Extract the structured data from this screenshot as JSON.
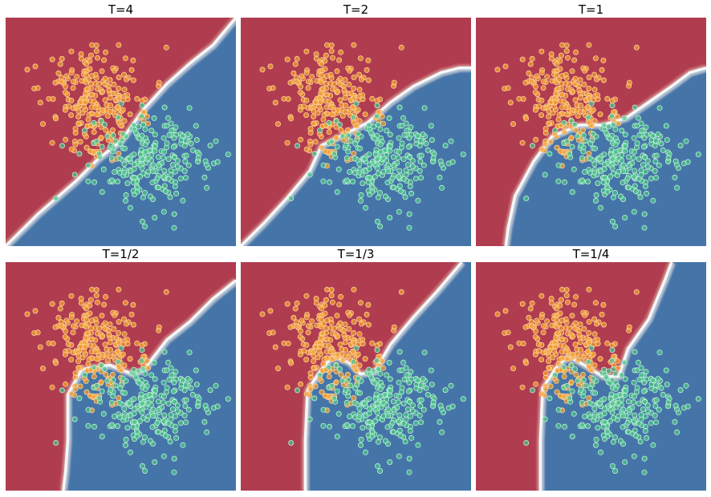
{
  "figure": {
    "colors": {
      "region_red": "#b03c50",
      "region_blue": "#4575a8",
      "boundary_white": "#f4f6f8",
      "point_orange": "#f5a030",
      "point_orange_edge": "#fbd29a",
      "point_green": "#4cc48a",
      "point_green_edge": "#bff0d6"
    }
  },
  "chart_data": [
    {
      "type": "scatter",
      "title": "T=4",
      "xlabel": "",
      "ylabel": "",
      "grid": false,
      "axes_visible": false,
      "decision_boundary": [
        [
          0.0,
          1.0
        ],
        [
          0.07,
          0.93
        ],
        [
          0.14,
          0.86
        ],
        [
          0.22,
          0.79
        ],
        [
          0.3,
          0.72
        ],
        [
          0.4,
          0.62
        ],
        [
          0.5,
          0.54
        ],
        [
          0.6,
          0.4
        ],
        [
          0.7,
          0.29
        ],
        [
          0.8,
          0.2
        ],
        [
          0.9,
          0.12
        ],
        [
          1.0,
          0.0
        ]
      ],
      "series": [
        {
          "class": "orange",
          "center": [
            0.38,
            0.36
          ],
          "spread": [
            0.11,
            0.12
          ],
          "count": 240
        },
        {
          "class": "green",
          "center": [
            0.62,
            0.62
          ],
          "spread": [
            0.13,
            0.1
          ],
          "count": 240
        }
      ]
    },
    {
      "type": "scatter",
      "title": "T=2",
      "xlabel": "",
      "ylabel": "",
      "grid": false,
      "axes_visible": false,
      "decision_boundary": [
        [
          0.0,
          1.0
        ],
        [
          0.1,
          0.9
        ],
        [
          0.2,
          0.79
        ],
        [
          0.3,
          0.67
        ],
        [
          0.35,
          0.56
        ],
        [
          0.45,
          0.51
        ],
        [
          0.55,
          0.46
        ],
        [
          0.65,
          0.37
        ],
        [
          0.75,
          0.3
        ],
        [
          0.87,
          0.24
        ],
        [
          0.95,
          0.22
        ],
        [
          1.0,
          0.22
        ]
      ],
      "series": [
        {
          "class": "orange",
          "center": [
            0.38,
            0.36
          ],
          "spread": [
            0.11,
            0.12
          ],
          "count": 240
        },
        {
          "class": "green",
          "center": [
            0.62,
            0.62
          ],
          "spread": [
            0.13,
            0.1
          ],
          "count": 240
        }
      ]
    },
    {
      "type": "scatter",
      "title": "T=1",
      "xlabel": "",
      "ylabel": "",
      "grid": false,
      "axes_visible": false,
      "decision_boundary": [
        [
          0.13,
          1.0
        ],
        [
          0.14,
          0.92
        ],
        [
          0.17,
          0.78
        ],
        [
          0.25,
          0.63
        ],
        [
          0.33,
          0.52
        ],
        [
          0.45,
          0.47
        ],
        [
          0.55,
          0.47
        ],
        [
          0.65,
          0.44
        ],
        [
          0.75,
          0.37
        ],
        [
          0.85,
          0.3
        ],
        [
          0.93,
          0.24
        ],
        [
          1.0,
          0.22
        ]
      ],
      "series": [
        {
          "class": "orange",
          "center": [
            0.38,
            0.36
          ],
          "spread": [
            0.11,
            0.12
          ],
          "count": 240
        },
        {
          "class": "green",
          "center": [
            0.62,
            0.62
          ],
          "spread": [
            0.13,
            0.1
          ],
          "count": 240
        }
      ]
    },
    {
      "type": "scatter",
      "title": "T=1/2",
      "xlabel": "",
      "ylabel": "",
      "grid": false,
      "axes_visible": false,
      "decision_boundary": [
        [
          0.25,
          1.0
        ],
        [
          0.26,
          0.92
        ],
        [
          0.27,
          0.78
        ],
        [
          0.27,
          0.58
        ],
        [
          0.33,
          0.47
        ],
        [
          0.45,
          0.45
        ],
        [
          0.55,
          0.49
        ],
        [
          0.6,
          0.47
        ],
        [
          0.7,
          0.34
        ],
        [
          0.8,
          0.26
        ],
        [
          0.9,
          0.16
        ],
        [
          1.0,
          0.08
        ]
      ],
      "series": [
        {
          "class": "orange",
          "center": [
            0.38,
            0.36
          ],
          "spread": [
            0.11,
            0.12
          ],
          "count": 240
        },
        {
          "class": "green",
          "center": [
            0.62,
            0.62
          ],
          "spread": [
            0.13,
            0.1
          ],
          "count": 240
        }
      ]
    },
    {
      "type": "scatter",
      "title": "T=1/3",
      "xlabel": "",
      "ylabel": "",
      "grid": false,
      "axes_visible": false,
      "decision_boundary": [
        [
          0.28,
          1.0
        ],
        [
          0.28,
          0.78
        ],
        [
          0.29,
          0.56
        ],
        [
          0.35,
          0.47
        ],
        [
          0.4,
          0.41
        ],
        [
          0.47,
          0.44
        ],
        [
          0.52,
          0.49
        ],
        [
          0.58,
          0.48
        ],
        [
          0.65,
          0.36
        ],
        [
          0.75,
          0.24
        ],
        [
          0.85,
          0.13
        ],
        [
          0.96,
          0.0
        ]
      ],
      "series": [
        {
          "class": "orange",
          "center": [
            0.38,
            0.36
          ],
          "spread": [
            0.11,
            0.12
          ],
          "count": 240
        },
        {
          "class": "green",
          "center": [
            0.62,
            0.62
          ],
          "spread": [
            0.13,
            0.1
          ],
          "count": 240
        }
      ]
    },
    {
      "type": "scatter",
      "title": "T=1/4",
      "xlabel": "",
      "ylabel": "",
      "grid": false,
      "axes_visible": false,
      "decision_boundary": [
        [
          0.28,
          1.0
        ],
        [
          0.28,
          0.78
        ],
        [
          0.29,
          0.55
        ],
        [
          0.35,
          0.46
        ],
        [
          0.4,
          0.41
        ],
        [
          0.47,
          0.45
        ],
        [
          0.55,
          0.5
        ],
        [
          0.62,
          0.5
        ],
        [
          0.66,
          0.38
        ],
        [
          0.75,
          0.25
        ],
        [
          0.82,
          0.08
        ],
        [
          0.85,
          0.0
        ]
      ],
      "series": [
        {
          "class": "orange",
          "center": [
            0.38,
            0.36
          ],
          "spread": [
            0.11,
            0.12
          ],
          "count": 240
        },
        {
          "class": "green",
          "center": [
            0.62,
            0.62
          ],
          "spread": [
            0.13,
            0.1
          ],
          "count": 240
        }
      ]
    }
  ]
}
